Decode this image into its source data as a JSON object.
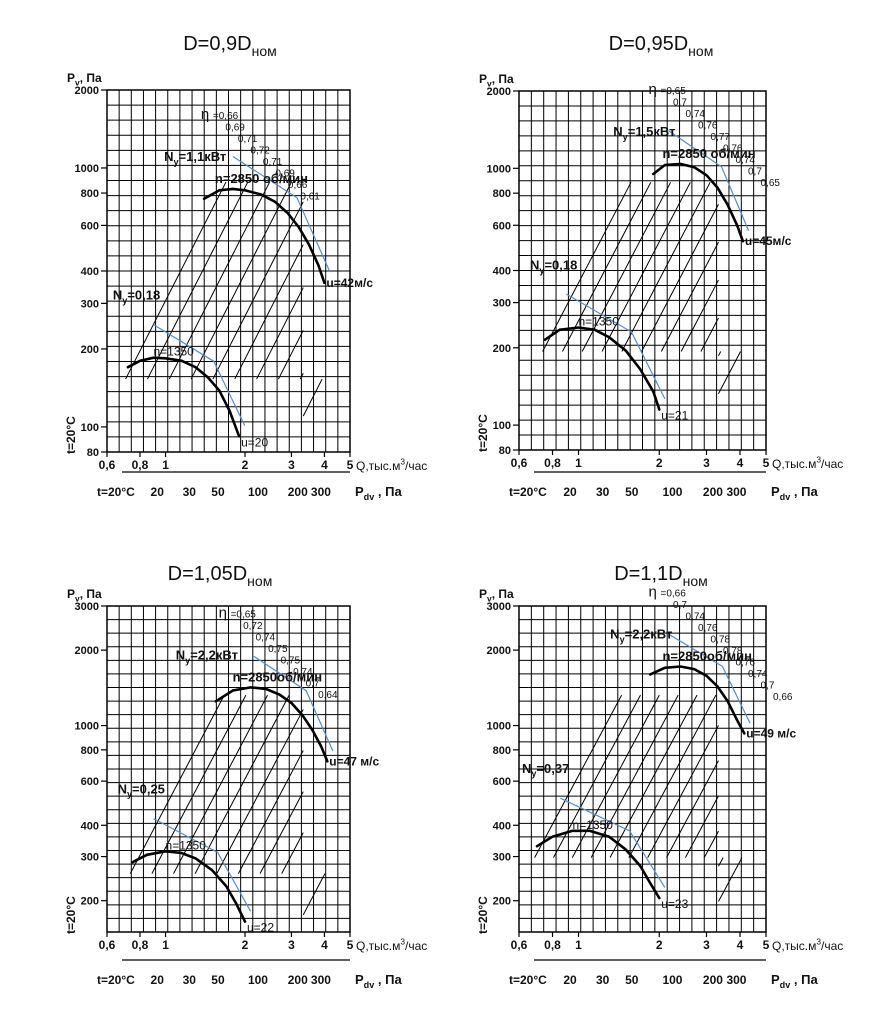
{
  "chart_data": [
    {
      "type": "line",
      "title_main": "D=0,9D",
      "title_sub": "ном",
      "ylabel": "P",
      "ylabel_sub": "v",
      "ylabel_unit": ", Па",
      "xlabel": "Q,тыс.м",
      "xlabel_sup": "3",
      "xlabel_unit": "/час",
      "temp_label": "t=20°C",
      "pdv_label": "P",
      "pdv_sub": "dv",
      "pdv_unit": " , Па",
      "xlim": [
        0.6,
        5
      ],
      "ylim": [
        80,
        2000
      ],
      "x_ticks": [
        {
          "v": 0.6,
          "t": "0,6"
        },
        {
          "v": 0.8,
          "t": "0,8"
        },
        {
          "v": 1,
          "t": "1"
        },
        {
          "v": 2,
          "t": "2"
        },
        {
          "v": 3,
          "t": "3"
        },
        {
          "v": 4,
          "t": "4"
        },
        {
          "v": 5,
          "t": "5"
        }
      ],
      "y_ticks": [
        {
          "v": 80,
          "t": "80"
        },
        {
          "v": 100,
          "t": "100"
        },
        {
          "v": 200,
          "t": "200"
        },
        {
          "v": 300,
          "t": "300"
        },
        {
          "v": 400,
          "t": "400"
        },
        {
          "v": 600,
          "t": "600"
        },
        {
          "v": 800,
          "t": "800"
        },
        {
          "v": 1000,
          "t": "1000"
        },
        {
          "v": 2000,
          "t": "2000"
        }
      ],
      "pdv_ticks": [
        {
          "q": 0.93,
          "t": "20"
        },
        {
          "q": 1.23,
          "t": "30"
        },
        {
          "q": 1.58,
          "t": "50"
        },
        {
          "q": 2.24,
          "t": "100"
        },
        {
          "q": 3.17,
          "t": "200"
        },
        {
          "q": 3.88,
          "t": "300"
        }
      ],
      "curves": [
        {
          "label": "n=2850 об/мин",
          "power": "N",
          "power_sub": "у",
          "power_value": "=1,1кВт",
          "points": [
            [
              1.4,
              760
            ],
            [
              1.6,
              820
            ],
            [
              1.8,
              830
            ],
            [
              2,
              820
            ],
            [
              2.3,
              790
            ],
            [
              2.6,
              740
            ],
            [
              2.9,
              670
            ],
            [
              3.2,
              590
            ],
            [
              3.5,
              505
            ],
            [
              3.8,
              420
            ],
            [
              4,
              360
            ]
          ]
        },
        {
          "label": "n=1350",
          "power": "N",
          "power_sub": "у",
          "power_value": "=0,18",
          "points": [
            [
              0.72,
              170
            ],
            [
              0.8,
              180
            ],
            [
              0.9,
              185
            ],
            [
              1,
              184
            ],
            [
              1.15,
              180
            ],
            [
              1.3,
              170
            ],
            [
              1.45,
              155
            ],
            [
              1.6,
              138
            ],
            [
              1.75,
              115
            ],
            [
              1.9,
              92
            ]
          ]
        }
      ],
      "eta_label": "η",
      "eta_values": [
        "=0,66",
        "0,69",
        "0,71",
        "0,72",
        "0,71",
        "0,69",
        "0,66",
        "0,61"
      ],
      "end_labels": [
        "u=42м/с",
        "u=20"
      ]
    },
    {
      "type": "line",
      "title_main": "D=0,95D",
      "title_sub": "ном",
      "ylabel": "P",
      "ylabel_sub": "v",
      "ylabel_unit": ", Па",
      "xlabel": "Q,тыс.м",
      "xlabel_sup": "3",
      "xlabel_unit": "/час",
      "temp_label": "t=20°C",
      "pdv_label": "P",
      "pdv_sub": "dv",
      "pdv_unit": " , Па",
      "xlim": [
        0.6,
        5
      ],
      "ylim": [
        80,
        2000
      ],
      "x_ticks": [
        {
          "v": 0.6,
          "t": "0,6"
        },
        {
          "v": 0.8,
          "t": "0,8"
        },
        {
          "v": 1,
          "t": "1"
        },
        {
          "v": 2,
          "t": "2"
        },
        {
          "v": 3,
          "t": "3"
        },
        {
          "v": 4,
          "t": "4"
        },
        {
          "v": 5,
          "t": "5"
        }
      ],
      "y_ticks": [
        {
          "v": 80,
          "t": "80"
        },
        {
          "v": 100,
          "t": "100"
        },
        {
          "v": 200,
          "t": "200"
        },
        {
          "v": 300,
          "t": "300"
        },
        {
          "v": 400,
          "t": "400"
        },
        {
          "v": 600,
          "t": "600"
        },
        {
          "v": 800,
          "t": "800"
        },
        {
          "v": 1000,
          "t": "1000"
        },
        {
          "v": 2000,
          "t": "2000"
        }
      ],
      "pdv_ticks": [
        {
          "q": 0.93,
          "t": "20"
        },
        {
          "q": 1.23,
          "t": "30"
        },
        {
          "q": 1.58,
          "t": "50"
        },
        {
          "q": 2.24,
          "t": "100"
        },
        {
          "q": 3.17,
          "t": "200"
        },
        {
          "q": 3.88,
          "t": "300"
        }
      ],
      "curves": [
        {
          "label": "n=2850 об/мин",
          "power": "N",
          "power_sub": "у",
          "power_value": "=1,5кВт",
          "points": [
            [
              1.9,
              950
            ],
            [
              2.1,
              1030
            ],
            [
              2.4,
              1040
            ],
            [
              2.7,
              1010
            ],
            [
              3,
              940
            ],
            [
              3.3,
              840
            ],
            [
              3.6,
              720
            ],
            [
              3.9,
              600
            ],
            [
              4.1,
              520
            ]
          ]
        },
        {
          "label": "n=1350",
          "power": "N",
          "power_sub": "у",
          "power_value": "=0,18",
          "points": [
            [
              0.75,
              215
            ],
            [
              0.85,
              235
            ],
            [
              1,
              240
            ],
            [
              1.15,
              235
            ],
            [
              1.3,
              220
            ],
            [
              1.5,
              195
            ],
            [
              1.7,
              165
            ],
            [
              1.9,
              135
            ],
            [
              2,
              115
            ]
          ]
        }
      ],
      "eta_label": "η",
      "eta_values": [
        "=0,65",
        "0,7",
        "0,74",
        "0,76",
        "0,77",
        "0,76",
        "0,74",
        "0,7",
        "0,65"
      ],
      "end_labels": [
        "u=45м/с",
        "u=21"
      ]
    },
    {
      "type": "line",
      "title_main": "D=1,05D",
      "title_sub": "ном",
      "ylabel": "P",
      "ylabel_sub": "v",
      "ylabel_unit": ", Па",
      "xlabel": "Q,тыс.м",
      "xlabel_sup": "3",
      "xlabel_unit": "/час",
      "temp_label": "t=20°C",
      "pdv_label": "P",
      "pdv_sub": "dv",
      "pdv_unit": " , Па",
      "xlim": [
        0.6,
        5
      ],
      "ylim": [
        150,
        3000
      ],
      "x_ticks": [
        {
          "v": 0.6,
          "t": "0,6"
        },
        {
          "v": 0.8,
          "t": "0,8"
        },
        {
          "v": 1,
          "t": "1"
        },
        {
          "v": 2,
          "t": "2"
        },
        {
          "v": 3,
          "t": "3"
        },
        {
          "v": 4,
          "t": "4"
        },
        {
          "v": 5,
          "t": "5"
        }
      ],
      "y_ticks": [
        {
          "v": 200,
          "t": "200"
        },
        {
          "v": 300,
          "t": "300"
        },
        {
          "v": 400,
          "t": "400"
        },
        {
          "v": 600,
          "t": "600"
        },
        {
          "v": 800,
          "t": "800"
        },
        {
          "v": 1000,
          "t": "1000"
        },
        {
          "v": 2000,
          "t": "2000"
        },
        {
          "v": 3000,
          "t": "3000"
        }
      ],
      "pdv_ticks": [
        {
          "q": 0.93,
          "t": "20"
        },
        {
          "q": 1.23,
          "t": "30"
        },
        {
          "q": 1.58,
          "t": "50"
        },
        {
          "q": 2.24,
          "t": "100"
        },
        {
          "q": 3.17,
          "t": "200"
        },
        {
          "q": 3.88,
          "t": "300"
        }
      ],
      "curves": [
        {
          "label": "n=2850об/мин",
          "power": "N",
          "power_sub": "у",
          "power_value": "=2,2кВт",
          "points": [
            [
              1.55,
              1250
            ],
            [
              1.8,
              1380
            ],
            [
              2.1,
              1420
            ],
            [
              2.4,
              1400
            ],
            [
              2.7,
              1330
            ],
            [
              3,
              1230
            ],
            [
              3.3,
              1100
            ],
            [
              3.6,
              960
            ],
            [
              3.9,
              820
            ],
            [
              4.1,
              720
            ]
          ]
        },
        {
          "label": "n=1350",
          "power": "N",
          "power_sub": "у",
          "power_value": "=0,25",
          "points": [
            [
              0.75,
              285
            ],
            [
              0.85,
              305
            ],
            [
              1,
              315
            ],
            [
              1.15,
              310
            ],
            [
              1.3,
              295
            ],
            [
              1.5,
              265
            ],
            [
              1.7,
              228
            ],
            [
              1.85,
              195
            ],
            [
              2,
              165
            ]
          ]
        }
      ],
      "eta_label": "η",
      "eta_values": [
        "=0,65",
        "0,72",
        "0,74",
        "0,75",
        "0,75",
        "0,74",
        "0,7",
        "0,64"
      ],
      "end_labels": [
        "u=47 м/с",
        "u=22"
      ]
    },
    {
      "type": "line",
      "title_main": "D=1,1D",
      "title_sub": "ном",
      "ylabel": "P",
      "ylabel_sub": "v",
      "ylabel_unit": ", Па",
      "xlabel": "Q,тыс.м",
      "xlabel_sup": "3",
      "xlabel_unit": "/час",
      "temp_label": "t=20°C",
      "pdv_label": "P",
      "pdv_sub": "dv",
      "pdv_unit": " , Па",
      "xlim": [
        0.6,
        5
      ],
      "ylim": [
        150,
        3000
      ],
      "x_ticks": [
        {
          "v": 0.6,
          "t": "0,6"
        },
        {
          "v": 0.8,
          "t": "0,8"
        },
        {
          "v": 1,
          "t": "1"
        },
        {
          "v": 2,
          "t": "2"
        },
        {
          "v": 3,
          "t": "3"
        },
        {
          "v": 4,
          "t": "4"
        },
        {
          "v": 5,
          "t": "5"
        }
      ],
      "y_ticks": [
        {
          "v": 200,
          "t": "200"
        },
        {
          "v": 300,
          "t": "300"
        },
        {
          "v": 400,
          "t": "400"
        },
        {
          "v": 600,
          "t": "600"
        },
        {
          "v": 800,
          "t": "800"
        },
        {
          "v": 1000,
          "t": "1000"
        },
        {
          "v": 2000,
          "t": "2000"
        },
        {
          "v": 3000,
          "t": "3000"
        }
      ],
      "pdv_ticks": [
        {
          "q": 0.93,
          "t": "20"
        },
        {
          "q": 1.23,
          "t": "30"
        },
        {
          "q": 1.58,
          "t": "50"
        },
        {
          "q": 2.24,
          "t": "100"
        },
        {
          "q": 3.17,
          "t": "200"
        },
        {
          "q": 3.88,
          "t": "300"
        }
      ],
      "curves": [
        {
          "label": "n=2850об/мин",
          "power": "N",
          "power_sub": "у",
          "power_value": "=2,2кВт",
          "points": [
            [
              1.85,
              1600
            ],
            [
              2.1,
              1700
            ],
            [
              2.4,
              1720
            ],
            [
              2.7,
              1680
            ],
            [
              3,
              1580
            ],
            [
              3.3,
              1430
            ],
            [
              3.6,
              1250
            ],
            [
              3.9,
              1050
            ],
            [
              4.15,
              930
            ]
          ]
        },
        {
          "label": "n=1350",
          "power": "N",
          "power_sub": "у",
          "power_value": "=0,37",
          "points": [
            [
              0.7,
              330
            ],
            [
              0.8,
              360
            ],
            [
              0.95,
              380
            ],
            [
              1.1,
              380
            ],
            [
              1.3,
              360
            ],
            [
              1.5,
              320
            ],
            [
              1.7,
              275
            ],
            [
              1.85,
              235
            ],
            [
              2,
              205
            ]
          ]
        }
      ],
      "eta_label": "η",
      "eta_values": [
        "=0,66",
        "0,7",
        "0,74",
        "0,76",
        "0,78",
        "0,78",
        "0,76",
        "0,74",
        "0,7",
        "0,66"
      ],
      "end_labels": [
        "u=49 м/с",
        "u=23"
      ]
    }
  ]
}
